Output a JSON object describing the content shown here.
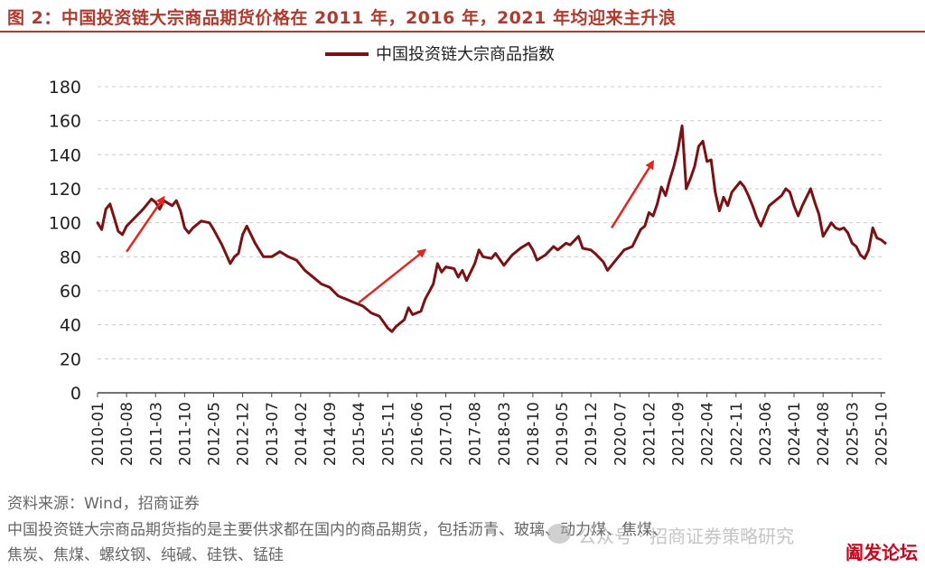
{
  "figure": {
    "title": "图 2：中国投资链大宗商品期货价格在 2011 年，2016 年，2021 年均迎来主升浪",
    "source": "资料来源：Wind，招商证券",
    "note_line1": "中国投资链大宗商品期货指的是主要供求都在国内的商品期货，包括沥青、玻璃、动力煤、焦煤、",
    "note_line2": "焦炭、焦煤、螺纹钢、纯碱、硅铁、锰硅"
  },
  "watermarks": {
    "wechat": "公众号 · 招商证券策略研究",
    "stamp": "阖发论坛"
  },
  "colors": {
    "line": "#7b1113",
    "arrow": "#e8231f",
    "title": "#b03a2e",
    "grid": "#cccccc"
  },
  "chart_data": {
    "type": "line",
    "title": "",
    "xlabel": "",
    "ylabel": "",
    "legend_position": "top-center",
    "grid": "horizontal-dashed",
    "ylim": [
      0,
      180
    ],
    "yticks": [
      0,
      20,
      40,
      60,
      80,
      100,
      120,
      140,
      160,
      180
    ],
    "xticks": [
      "2010-01",
      "2010-08",
      "2011-03",
      "2011-10",
      "2012-05",
      "2012-12",
      "2013-07",
      "2014-02",
      "2014-09",
      "2015-04",
      "2015-11",
      "2016-06",
      "2017-01",
      "2017-08",
      "2018-03",
      "2018-10",
      "2019-05",
      "2019-12",
      "2020-07",
      "2021-02",
      "2021-09",
      "2022-04",
      "2022-11",
      "2023-06",
      "2024-01",
      "2024-08",
      "2025-03",
      "2025-10"
    ],
    "xrange": [
      "2010-01",
      "2025-11"
    ],
    "series": [
      {
        "name": "中国投资链大宗商品指数",
        "points": [
          [
            "2010-01",
            100
          ],
          [
            "2010-02",
            96
          ],
          [
            "2010-03",
            108
          ],
          [
            "2010-04",
            111
          ],
          [
            "2010-05",
            103
          ],
          [
            "2010-06",
            95
          ],
          [
            "2010-07",
            93
          ],
          [
            "2010-08",
            98
          ],
          [
            "2010-10",
            103
          ],
          [
            "2010-12",
            108
          ],
          [
            "2011-02",
            114
          ],
          [
            "2011-03",
            112
          ],
          [
            "2011-04",
            108
          ],
          [
            "2011-05",
            113
          ],
          [
            "2011-07",
            110
          ],
          [
            "2011-08",
            113
          ],
          [
            "2011-09",
            107
          ],
          [
            "2011-10",
            97
          ],
          [
            "2011-11",
            94
          ],
          [
            "2011-12",
            97
          ],
          [
            "2012-02",
            101
          ],
          [
            "2012-04",
            100
          ],
          [
            "2012-05",
            96
          ],
          [
            "2012-07",
            87
          ],
          [
            "2012-09",
            76
          ],
          [
            "2012-10",
            80
          ],
          [
            "2012-11",
            82
          ],
          [
            "2012-12",
            93
          ],
          [
            "2013-01",
            98
          ],
          [
            "2013-02",
            93
          ],
          [
            "2013-03",
            88
          ],
          [
            "2013-05",
            80
          ],
          [
            "2013-07",
            80
          ],
          [
            "2013-09",
            83
          ],
          [
            "2013-11",
            80
          ],
          [
            "2014-01",
            78
          ],
          [
            "2014-03",
            72
          ],
          [
            "2014-05",
            68
          ],
          [
            "2014-07",
            64
          ],
          [
            "2014-09",
            62
          ],
          [
            "2014-11",
            57
          ],
          [
            "2015-01",
            55
          ],
          [
            "2015-03",
            53
          ],
          [
            "2015-05",
            51
          ],
          [
            "2015-07",
            47
          ],
          [
            "2015-09",
            45
          ],
          [
            "2015-11",
            38
          ],
          [
            "2015-12",
            36
          ],
          [
            "2016-01",
            39
          ],
          [
            "2016-03",
            43
          ],
          [
            "2016-04",
            50
          ],
          [
            "2016-05",
            46
          ],
          [
            "2016-07",
            48
          ],
          [
            "2016-08",
            55
          ],
          [
            "2016-10",
            64
          ],
          [
            "2016-11",
            76
          ],
          [
            "2016-12",
            71
          ],
          [
            "2017-01",
            74
          ],
          [
            "2017-03",
            73
          ],
          [
            "2017-04",
            68
          ],
          [
            "2017-05",
            72
          ],
          [
            "2017-06",
            66
          ],
          [
            "2017-08",
            76
          ],
          [
            "2017-09",
            84
          ],
          [
            "2017-10",
            80
          ],
          [
            "2017-12",
            79
          ],
          [
            "2018-01",
            82
          ],
          [
            "2018-03",
            75
          ],
          [
            "2018-05",
            81
          ],
          [
            "2018-07",
            85
          ],
          [
            "2018-09",
            88
          ],
          [
            "2018-10",
            84
          ],
          [
            "2018-11",
            78
          ],
          [
            "2019-01",
            81
          ],
          [
            "2019-03",
            86
          ],
          [
            "2019-04",
            84
          ],
          [
            "2019-06",
            88
          ],
          [
            "2019-07",
            87
          ],
          [
            "2019-09",
            92
          ],
          [
            "2019-10",
            85
          ],
          [
            "2019-12",
            84
          ],
          [
            "2020-01",
            82
          ],
          [
            "2020-03",
            77
          ],
          [
            "2020-04",
            72
          ],
          [
            "2020-06",
            78
          ],
          [
            "2020-08",
            84
          ],
          [
            "2020-10",
            86
          ],
          [
            "2020-12",
            96
          ],
          [
            "2021-01",
            98
          ],
          [
            "2021-02",
            106
          ],
          [
            "2021-03",
            104
          ],
          [
            "2021-04",
            111
          ],
          [
            "2021-05",
            121
          ],
          [
            "2021-06",
            116
          ],
          [
            "2021-07",
            125
          ],
          [
            "2021-08",
            133
          ],
          [
            "2021-09",
            143
          ],
          [
            "2021-10",
            157
          ],
          [
            "2021-11",
            120
          ],
          [
            "2021-12",
            126
          ],
          [
            "2022-01",
            133
          ],
          [
            "2022-02",
            145
          ],
          [
            "2022-03",
            148
          ],
          [
            "2022-04",
            136
          ],
          [
            "2022-05",
            137
          ],
          [
            "2022-06",
            118
          ],
          [
            "2022-07",
            107
          ],
          [
            "2022-08",
            115
          ],
          [
            "2022-09",
            110
          ],
          [
            "2022-10",
            118
          ],
          [
            "2022-11",
            121
          ],
          [
            "2022-12",
            124
          ],
          [
            "2023-01",
            121
          ],
          [
            "2023-02",
            116
          ],
          [
            "2023-03",
            110
          ],
          [
            "2023-04",
            103
          ],
          [
            "2023-05",
            98
          ],
          [
            "2023-06",
            104
          ],
          [
            "2023-07",
            110
          ],
          [
            "2023-08",
            112
          ],
          [
            "2023-10",
            116
          ],
          [
            "2023-11",
            120
          ],
          [
            "2023-12",
            118
          ],
          [
            "2024-01",
            110
          ],
          [
            "2024-02",
            104
          ],
          [
            "2024-03",
            110
          ],
          [
            "2024-04",
            115
          ],
          [
            "2024-05",
            120
          ],
          [
            "2024-06",
            112
          ],
          [
            "2024-07",
            105
          ],
          [
            "2024-08",
            92
          ],
          [
            "2024-09",
            96
          ],
          [
            "2024-10",
            100
          ],
          [
            "2024-11",
            97
          ],
          [
            "2024-12",
            96
          ],
          [
            "2025-01",
            97
          ],
          [
            "2025-02",
            94
          ],
          [
            "2025-03",
            88
          ],
          [
            "2025-04",
            86
          ],
          [
            "2025-05",
            81
          ],
          [
            "2025-06",
            79
          ],
          [
            "2025-07",
            84
          ],
          [
            "2025-08",
            97
          ],
          [
            "2025-09",
            91
          ],
          [
            "2025-10",
            90
          ],
          [
            "2025-11",
            88
          ]
        ]
      }
    ],
    "annotations": [
      {
        "type": "arrow",
        "from": [
          "2010-08",
          83
        ],
        "to": [
          "2011-05",
          115
        ]
      },
      {
        "type": "arrow",
        "from": [
          "2015-04",
          53
        ],
        "to": [
          "2016-08",
          84
        ]
      },
      {
        "type": "arrow",
        "from": [
          "2020-05",
          97
        ],
        "to": [
          "2021-03",
          136
        ]
      }
    ]
  }
}
